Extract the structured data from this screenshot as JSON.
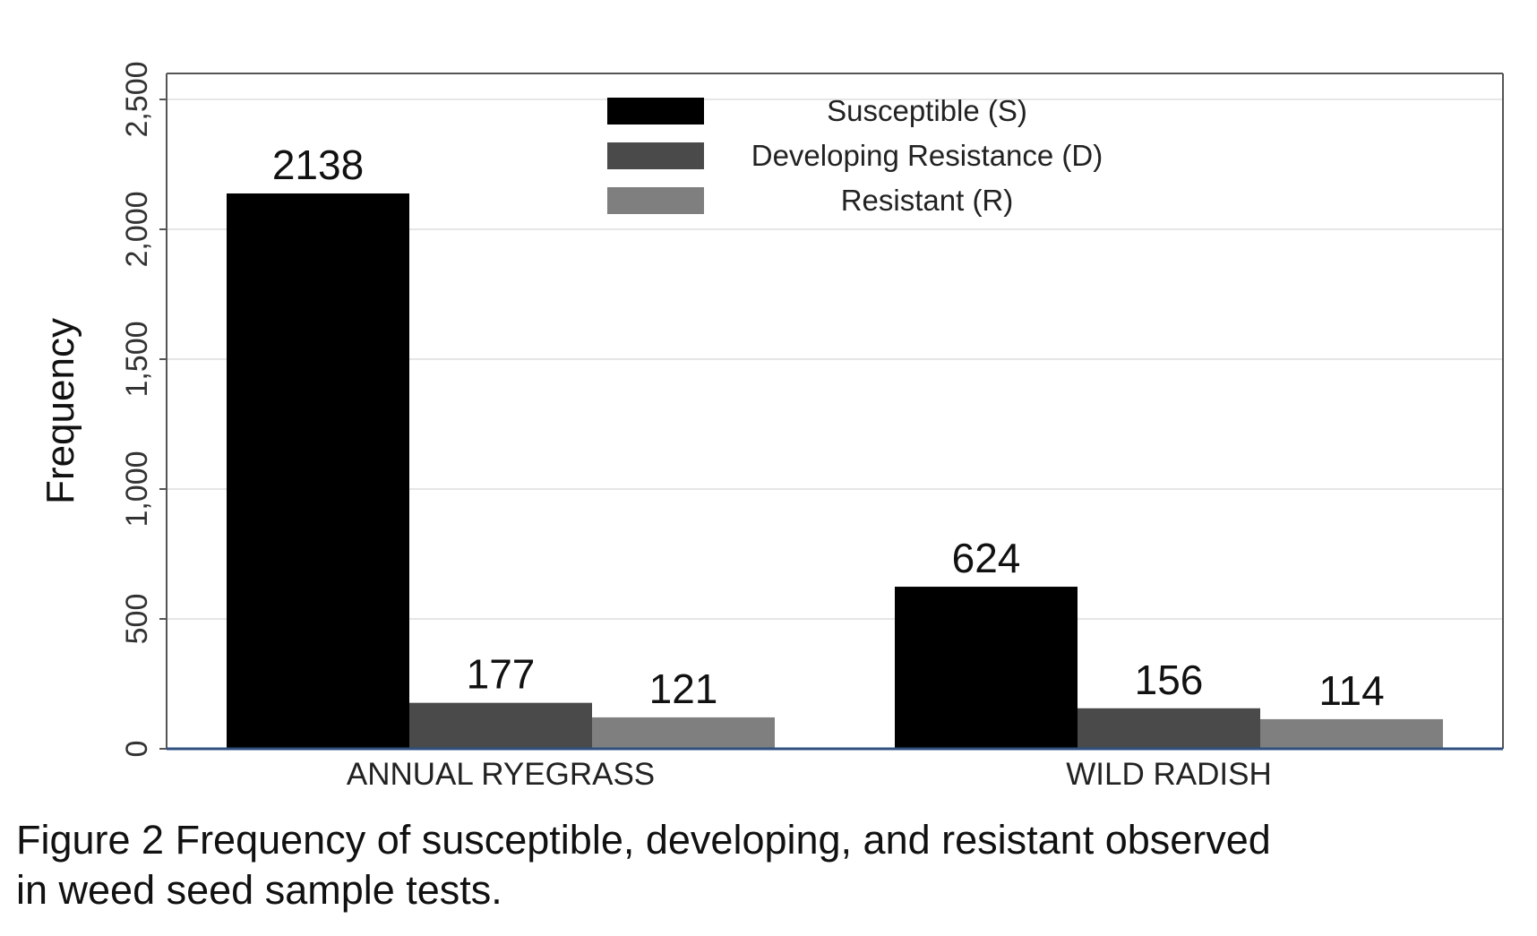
{
  "chart_data": {
    "type": "bar",
    "categories": [
      "ANNUAL RYEGRASS",
      "WILD RADISH"
    ],
    "series": [
      {
        "name": "Susceptible (S)",
        "values": [
          2138,
          624
        ],
        "color": "#000000"
      },
      {
        "name": "Developing Resistance (D)",
        "values": [
          177,
          156
        ],
        "color": "#4a4a4a"
      },
      {
        "name": "Resistant (R)",
        "values": [
          121,
          114
        ],
        "color": "#7f7f7f"
      }
    ],
    "data_labels": [
      [
        "2138",
        "624"
      ],
      [
        "177",
        "156"
      ],
      [
        "121",
        "114"
      ]
    ],
    "ylabel": "Frequency",
    "xlabel": "",
    "ylim": [
      0,
      2600
    ],
    "yticks": [
      0,
      500,
      1000,
      1500,
      2000,
      2500
    ],
    "ytick_labels": [
      "0",
      "500",
      "1,000",
      "1,500",
      "2,000",
      "2,500"
    ],
    "grid": true,
    "legend_position": "top-center",
    "tick_label_orientation": "vertical"
  },
  "caption": {
    "line1": "Figure 2 Frequency of susceptible, developing, and resistant observed",
    "line2": "in weed seed sample tests."
  }
}
